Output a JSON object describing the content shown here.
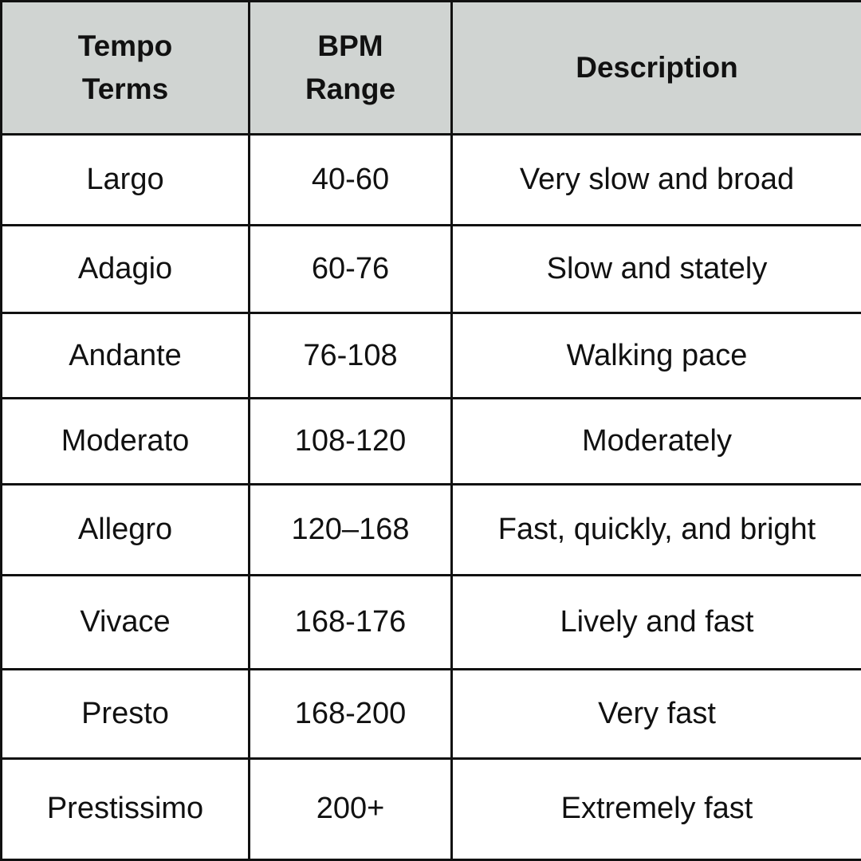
{
  "table": {
    "header": [
      "Tempo Terms",
      "BPM Range",
      "Description"
    ],
    "rows": [
      [
        "Largo",
        "40-60",
        "Very slow and broad"
      ],
      [
        "Adagio",
        "60-76",
        "Slow and stately"
      ],
      [
        "Andante",
        "76-108",
        "Walking pace"
      ],
      [
        "Moderato",
        "108-120",
        "Moderately"
      ],
      [
        "Allegro",
        "120–168",
        "Fast, quickly, and bright"
      ],
      [
        "Vivace",
        "168-176",
        "Lively and fast"
      ],
      [
        "Presto",
        "168-200",
        "Very fast"
      ],
      [
        "Prestissimo",
        "200+",
        "Extremely fast"
      ]
    ]
  }
}
